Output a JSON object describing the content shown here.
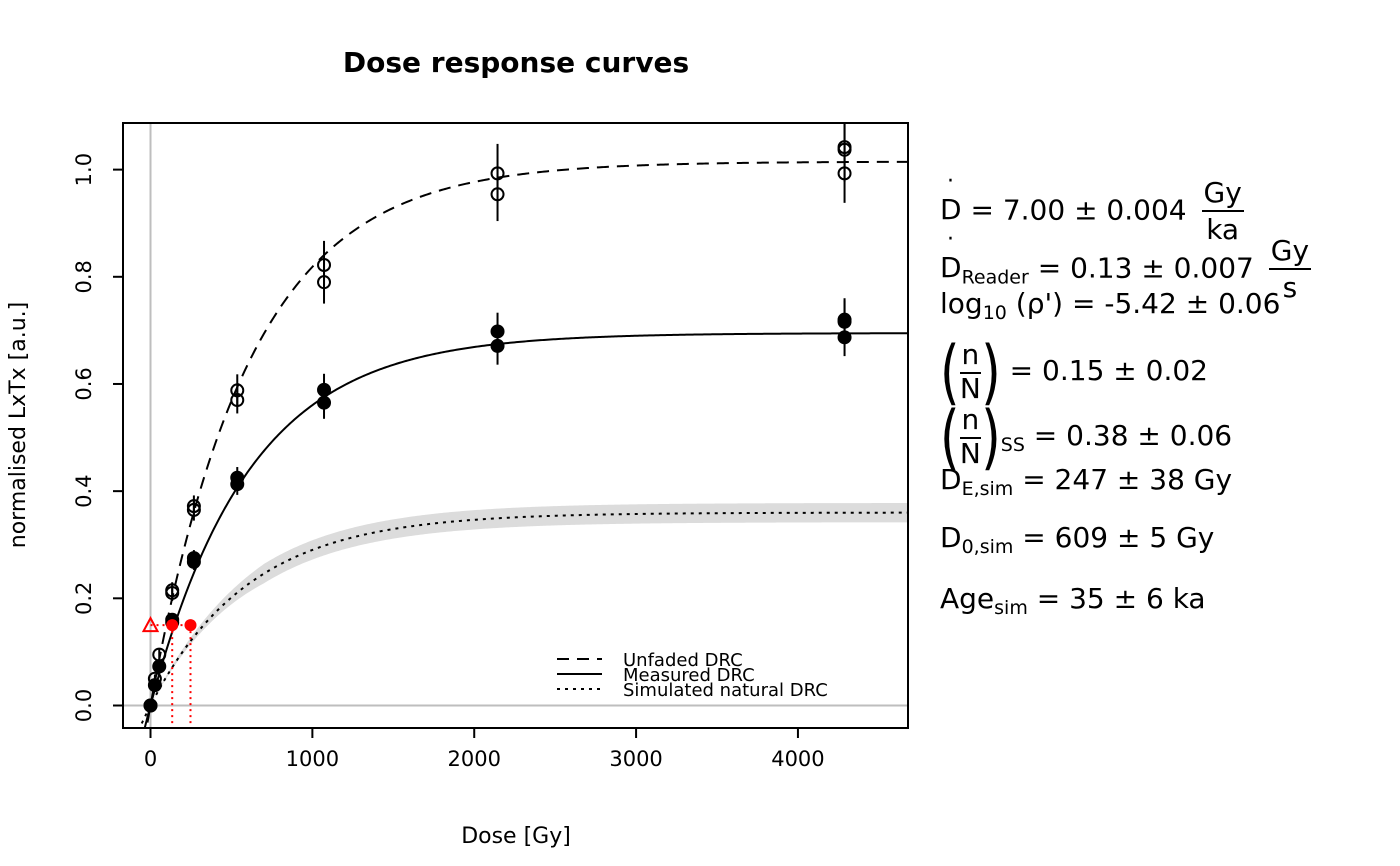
{
  "chart_data": {
    "type": "scatter",
    "title": "Dose response curves",
    "xlabel": "Dose [Gy]",
    "ylabel": "normalised LxTx [a.u.]",
    "xlim": [
      -170,
      4680
    ],
    "ylim": [
      -0.042,
      1.087
    ],
    "x_ticks": [
      0,
      1000,
      2000,
      3000,
      4000
    ],
    "x_tick_labels": [
      "0",
      "1000",
      "2000",
      "3000",
      "4000"
    ],
    "y_ticks": [
      0.0,
      0.2,
      0.4,
      0.6,
      0.8,
      1.0
    ],
    "y_tick_labels": [
      "0.0",
      "0.2",
      "0.4",
      "0.6",
      "0.8",
      "1.0"
    ],
    "legend_position": "bottom-right",
    "legend": [
      "Unfaded DRC",
      "Measured DRC",
      "Simulated natural DRC"
    ],
    "curves": [
      {
        "name": "Unfaded DRC",
        "style": "dashed",
        "a": 1.015,
        "d0": 609,
        "b": 0
      },
      {
        "name": "Measured DRC",
        "style": "solid",
        "a": 0.695,
        "d0": 609,
        "b": 0
      },
      {
        "name": "Simulated natural DRC",
        "style": "dotted",
        "a": 0.36,
        "d0": 609,
        "b": 0.0,
        "band": 0.018
      }
    ],
    "unfaded_points": [
      {
        "x": 0,
        "y": 0.0,
        "err": 0.0
      },
      {
        "x": 27,
        "y": 0.05,
        "err": 0.008
      },
      {
        "x": 54,
        "y": 0.095,
        "err": 0.01
      },
      {
        "x": 134,
        "y": 0.215,
        "err": 0.015
      },
      {
        "x": 134,
        "y": 0.21,
        "err": 0.015
      },
      {
        "x": 268,
        "y": 0.365,
        "err": 0.02
      },
      {
        "x": 268,
        "y": 0.372,
        "err": 0.02
      },
      {
        "x": 536,
        "y": 0.57,
        "err": 0.025
      },
      {
        "x": 536,
        "y": 0.588,
        "err": 0.03
      },
      {
        "x": 1072,
        "y": 0.79,
        "err": 0.04
      },
      {
        "x": 1072,
        "y": 0.822,
        "err": 0.045
      },
      {
        "x": 2144,
        "y": 0.954,
        "err": 0.05
      },
      {
        "x": 2144,
        "y": 0.993,
        "err": 0.055
      },
      {
        "x": 4288,
        "y": 0.993,
        "err": 0.055
      },
      {
        "x": 4288,
        "y": 1.037,
        "err": 0.06
      },
      {
        "x": 4288,
        "y": 1.042,
        "err": 0.06
      }
    ],
    "measured_points": [
      {
        "x": 0,
        "y": 0.0,
        "err": 0.0
      },
      {
        "x": 27,
        "y": 0.038,
        "err": 0.006
      },
      {
        "x": 54,
        "y": 0.073,
        "err": 0.008
      },
      {
        "x": 134,
        "y": 0.16,
        "err": 0.012
      },
      {
        "x": 134,
        "y": 0.155,
        "err": 0.012
      },
      {
        "x": 268,
        "y": 0.268,
        "err": 0.015
      },
      {
        "x": 268,
        "y": 0.275,
        "err": 0.015
      },
      {
        "x": 536,
        "y": 0.413,
        "err": 0.02
      },
      {
        "x": 536,
        "y": 0.425,
        "err": 0.02
      },
      {
        "x": 1072,
        "y": 0.565,
        "err": 0.03
      },
      {
        "x": 1072,
        "y": 0.589,
        "err": 0.03
      },
      {
        "x": 2144,
        "y": 0.671,
        "err": 0.035
      },
      {
        "x": 2144,
        "y": 0.698,
        "err": 0.035
      },
      {
        "x": 4288,
        "y": 0.687,
        "err": 0.035
      },
      {
        "x": 4288,
        "y": 0.716,
        "err": 0.04
      },
      {
        "x": 4288,
        "y": 0.72,
        "err": 0.04
      }
    ],
    "natural_signal": {
      "y": 0.15,
      "x_triangle": 0,
      "x_measured": 134,
      "x_simulated": 247
    }
  },
  "annotations": {
    "dose_rate": {
      "symbol": "D",
      "eq": " = 7.00 ± 0.004 ",
      "num": "Gy",
      "den": "ka"
    },
    "reader_rate": {
      "symbol": "D",
      "sub": "Reader",
      "eq": " = 0.13 ± 0.007 ",
      "num": "Gy",
      "den": "s"
    },
    "rho": {
      "prefix": "log",
      "sub": "10",
      "arg": " (ρ') = -5.42 ± 0.06"
    },
    "nN": {
      "num": "n",
      "den": "N",
      "eq": " = 0.15 ± 0.02"
    },
    "nN_ss": {
      "num": "n",
      "den": "N",
      "sub": "SS",
      "eq": " = 0.38 ± 0.06"
    },
    "de_sim": {
      "symbol": "D",
      "sub": "E,sim",
      "eq": " = 247 ± 38 Gy"
    },
    "d0_sim": {
      "symbol": "D",
      "sub": "0,sim",
      "eq": " = 609 ± 5 Gy"
    },
    "age_sim": {
      "symbol": "Age",
      "sub": "sim",
      "eq": " = 35 ± 6 ka"
    }
  },
  "colors": {
    "natural": "#ff0000",
    "band": "#dcdcdc",
    "zero_line": "#bebebe",
    "ink": "#000000"
  }
}
